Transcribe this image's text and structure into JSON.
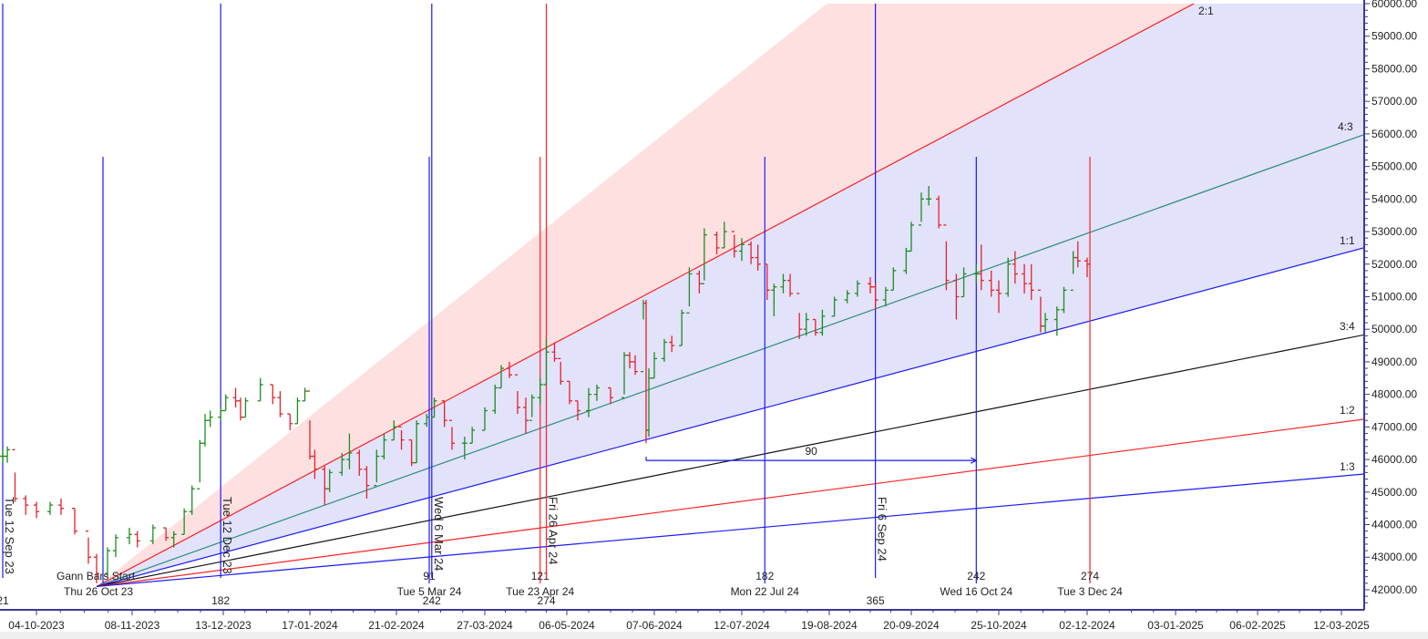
{
  "chart_data": {
    "type": "ohlc-bar",
    "title": "",
    "xlabel": "",
    "ylabel": "",
    "ylim": [
      41500,
      60000
    ],
    "y_ticks": [
      "60000.00",
      "59000.00",
      "58000.00",
      "57000.00",
      "56000.00",
      "55000.00",
      "54000.00",
      "53000.00",
      "52000.00",
      "51000.00",
      "50000.00",
      "49000.00",
      "48000.00",
      "47000.00",
      "46000.00",
      "45000.00",
      "44000.00",
      "43000.00",
      "42000.00"
    ],
    "x_ticks": [
      "04-10-2023",
      "08-11-2023",
      "13-12-2023",
      "17-01-2024",
      "21-02-2024",
      "27-03-2024",
      "06-05-2024",
      "07-06-2024",
      "12-07-2024",
      "19-08-2024",
      "20-09-2024",
      "25-10-2024",
      "02-12-2024",
      "03-01-2025",
      "06-02-2025",
      "12-03-2025"
    ],
    "grid": false,
    "colors": {
      "up": "#1e8c1e",
      "down": "#e8202a",
      "axis": "#3a3a9a",
      "fill_steep": "#ffe0e0",
      "fill_main": "#e2e2fb"
    },
    "bars": [
      [
        "2023-09-12",
        46300,
        45900,
        46100
      ],
      [
        "2023-09-15",
        46400,
        45900,
        46300
      ],
      [
        "2023-09-20",
        45600,
        44700,
        44800
      ],
      [
        "2023-09-27",
        44900,
        44300,
        44600
      ],
      [
        "2023-10-04",
        44700,
        44200,
        44400
      ],
      [
        "2023-10-09",
        44700,
        44300,
        44600
      ],
      [
        "2023-10-13",
        44800,
        44300,
        44500
      ],
      [
        "2023-10-18",
        44500,
        43700,
        43800
      ],
      [
        "2023-10-23",
        43600,
        42800,
        43000
      ],
      [
        "2023-10-26",
        43100,
        42200,
        42500
      ],
      [
        "2023-10-30",
        43300,
        42400,
        43200
      ],
      [
        "2023-11-02",
        43700,
        43000,
        43600
      ],
      [
        "2023-11-07",
        43900,
        43400,
        43700
      ],
      [
        "2023-11-10",
        43800,
        43300,
        43500
      ],
      [
        "2023-11-16",
        44000,
        43400,
        43900
      ],
      [
        "2023-11-21",
        43900,
        43500,
        43600
      ],
      [
        "2023-11-24",
        43800,
        43300,
        43700
      ],
      [
        "2023-11-28",
        44500,
        43700,
        44400
      ],
      [
        "2023-12-01",
        45200,
        44300,
        45100
      ],
      [
        "2023-12-04",
        46600,
        45300,
        46500
      ],
      [
        "2023-12-06",
        47400,
        46400,
        47200
      ],
      [
        "2023-12-08",
        47500,
        47000,
        47300
      ],
      [
        "2023-12-12",
        47600,
        47200,
        47500
      ],
      [
        "2023-12-14",
        48000,
        47500,
        47900
      ],
      [
        "2023-12-18",
        48200,
        47600,
        47800
      ],
      [
        "2023-12-20",
        47900,
        47200,
        47300
      ],
      [
        "2023-12-22",
        47900,
        47300,
        47800
      ],
      [
        "2023-12-28",
        48500,
        47800,
        48300
      ],
      [
        "2024-01-02",
        48300,
        47700,
        47900
      ],
      [
        "2024-01-05",
        48100,
        47300,
        47400
      ],
      [
        "2024-01-09",
        47400,
        46900,
        47100
      ],
      [
        "2024-01-12",
        47900,
        47100,
        47800
      ],
      [
        "2024-01-15",
        48200,
        47800,
        48100
      ],
      [
        "2024-01-17",
        47200,
        46000,
        46100
      ],
      [
        "2024-01-19",
        46300,
        45400,
        45700
      ],
      [
        "2024-01-23",
        45800,
        44600,
        45100
      ],
      [
        "2024-01-25",
        45700,
        45000,
        45600
      ],
      [
        "2024-01-30",
        46200,
        45500,
        46000
      ],
      [
        "2024-02-02",
        46800,
        45700,
        46200
      ],
      [
        "2024-02-06",
        46300,
        45500,
        45700
      ],
      [
        "2024-02-09",
        45800,
        44800,
        45200
      ],
      [
        "2024-02-13",
        46300,
        45300,
        46100
      ],
      [
        "2024-02-16",
        46800,
        46000,
        46600
      ],
      [
        "2024-02-20",
        47200,
        46600,
        47000
      ],
      [
        "2024-02-23",
        46900,
        46300,
        46600
      ],
      [
        "2024-02-27",
        46600,
        45800,
        45900
      ],
      [
        "2024-02-29",
        47200,
        45900,
        47100
      ],
      [
        "2024-03-04",
        47400,
        47000,
        47300
      ],
      [
        "2024-03-07",
        47900,
        47300,
        47800
      ],
      [
        "2024-03-11",
        47800,
        47000,
        47200
      ],
      [
        "2024-03-14",
        47000,
        46300,
        46500
      ],
      [
        "2024-03-19",
        46700,
        46000,
        46500
      ],
      [
        "2024-03-22",
        47000,
        46500,
        46900
      ],
      [
        "2024-03-27",
        47600,
        46900,
        47500
      ],
      [
        "2024-04-01",
        48300,
        47400,
        48200
      ],
      [
        "2024-04-04",
        48900,
        48200,
        48800
      ],
      [
        "2024-04-08",
        49000,
        48500,
        48600
      ],
      [
        "2024-04-12",
        48100,
        47400,
        47600
      ],
      [
        "2024-04-16",
        47900,
        46800,
        47200
      ],
      [
        "2024-04-19",
        48000,
        47300,
        47900
      ],
      [
        "2024-04-23",
        48500,
        47700,
        48300
      ],
      [
        "2024-04-26",
        49700,
        48300,
        49300
      ],
      [
        "2024-04-30",
        49600,
        49000,
        49100
      ],
      [
        "2024-05-03",
        49000,
        48300,
        48400
      ],
      [
        "2024-05-07",
        48400,
        47700,
        47800
      ],
      [
        "2024-05-10",
        47800,
        47200,
        47500
      ],
      [
        "2024-05-14",
        48200,
        47300,
        48000
      ],
      [
        "2024-05-17",
        48300,
        47800,
        48200
      ],
      [
        "2024-05-22",
        48200,
        47700,
        47900
      ],
      [
        "2024-05-27",
        49300,
        48000,
        49200
      ],
      [
        "2024-05-29",
        49300,
        48800,
        49000
      ],
      [
        "2024-05-31",
        49200,
        48600,
        48700
      ],
      [
        "2024-06-03",
        50900,
        50300,
        50800
      ],
      [
        "2024-06-04",
        50900,
        46500,
        46900
      ],
      [
        "2024-06-05",
        48800,
        46700,
        48500
      ],
      [
        "2024-06-07",
        49300,
        48500,
        49100
      ],
      [
        "2024-06-11",
        49700,
        49000,
        49600
      ],
      [
        "2024-06-14",
        49800,
        49300,
        49500
      ],
      [
        "2024-06-18",
        50600,
        49500,
        50500
      ],
      [
        "2024-06-21",
        51900,
        50700,
        51700
      ],
      [
        "2024-06-25",
        51800,
        51100,
        51400
      ],
      [
        "2024-06-27",
        53100,
        51500,
        52900
      ],
      [
        "2024-07-02",
        53000,
        52300,
        52500
      ],
      [
        "2024-07-05",
        53300,
        52500,
        53000
      ],
      [
        "2024-07-09",
        52900,
        52200,
        52400
      ],
      [
        "2024-07-12",
        52800,
        52100,
        52600
      ],
      [
        "2024-07-16",
        52700,
        52000,
        52200
      ],
      [
        "2024-07-19",
        52600,
        51800,
        52000
      ],
      [
        "2024-07-23",
        52000,
        50900,
        51200
      ],
      [
        "2024-07-26",
        51400,
        50400,
        51300
      ],
      [
        "2024-07-30",
        51700,
        51100,
        51500
      ],
      [
        "2024-08-02",
        51700,
        51000,
        51100
      ],
      [
        "2024-08-06",
        50500,
        49700,
        50000
      ],
      [
        "2024-08-09",
        50500,
        49800,
        50300
      ],
      [
        "2024-08-13",
        50300,
        49800,
        49900
      ],
      [
        "2024-08-16",
        50600,
        49800,
        50400
      ],
      [
        "2024-08-21",
        51000,
        50400,
        50900
      ],
      [
        "2024-08-26",
        51200,
        50800,
        51100
      ],
      [
        "2024-08-30",
        51500,
        51000,
        51400
      ],
      [
        "2024-09-04",
        51600,
        51100,
        51300
      ],
      [
        "2024-09-06",
        51400,
        50600,
        50900
      ],
      [
        "2024-09-10",
        51300,
        50700,
        51200
      ],
      [
        "2024-09-13",
        51900,
        51200,
        51800
      ],
      [
        "2024-09-18",
        52500,
        51700,
        52400
      ],
      [
        "2024-09-20",
        53300,
        52400,
        53200
      ],
      [
        "2024-09-24",
        54200,
        53300,
        54000
      ],
      [
        "2024-09-27",
        54400,
        53800,
        54000
      ],
      [
        "2024-10-01",
        54100,
        53100,
        53200
      ],
      [
        "2024-10-04",
        52700,
        51200,
        51500
      ],
      [
        "2024-10-08",
        51700,
        50300,
        51000
      ],
      [
        "2024-10-11",
        51900,
        51000,
        51700
      ],
      [
        "2024-10-16",
        52000,
        51400,
        51700
      ],
      [
        "2024-10-18",
        52600,
        51200,
        51500
      ],
      [
        "2024-10-22",
        51800,
        51000,
        51200
      ],
      [
        "2024-10-25",
        51500,
        50500,
        51100
      ],
      [
        "2024-10-29",
        52200,
        51000,
        52000
      ],
      [
        "2024-11-01",
        52400,
        51400,
        51700
      ],
      [
        "2024-11-05",
        52000,
        51100,
        51400
      ],
      [
        "2024-11-08",
        52000,
        50900,
        51200
      ],
      [
        "2024-11-12",
        51000,
        49900,
        50100
      ],
      [
        "2024-11-14",
        50500,
        49900,
        50300
      ],
      [
        "2024-11-19",
        50700,
        49800,
        50600
      ],
      [
        "2024-11-22",
        51300,
        50500,
        51200
      ],
      [
        "2024-11-26",
        52400,
        51700,
        52200
      ],
      [
        "2024-11-28",
        52700,
        51900,
        52100
      ],
      [
        "2024-12-02",
        52200,
        51600,
        52000
      ]
    ],
    "gann_fan": {
      "origin": {
        "date": "2023-10-26",
        "price": 42100
      },
      "start_label": "Gann Bars Start",
      "start_date_label": "Thu 26 Oct 23",
      "fill_edge": {
        "date": "2024-06-07",
        "price": 55770,
        "color": "#ffd0d0"
      },
      "lines": [
        {
          "label": "2:1",
          "color": "#ff2020",
          "date": "2024-12-02",
          "price": 58260
        },
        {
          "label": "4:3",
          "color": "#2e8b7a",
          "date": "2024-12-02",
          "price": 52945
        },
        {
          "label": "1:1",
          "color": "#1a1aff",
          "date": "2024-12-02",
          "price": 50230
        },
        {
          "label": "3:4",
          "color": "#111111",
          "date": "2024-12-02",
          "price": 48140
        },
        {
          "label": "1:2",
          "color": "#ff2020",
          "date": "2024-12-02",
          "price": 46115
        },
        {
          "label": "1:3",
          "color": "#1a1aff",
          "date": "2024-12-02",
          "price": 44800
        }
      ]
    },
    "bar_count_markers": [
      {
        "date": "2024-03-05",
        "count": "91",
        "date_label": "Tue 5 Mar 24",
        "color": "#1a1aff"
      },
      {
        "date": "2024-04-23",
        "count": "121",
        "date_label": "Tue 23 Apr 24",
        "color": "#ff2020"
      },
      {
        "date": "2024-07-22",
        "count": "182",
        "date_label": "Mon 22 Jul 24",
        "color": "#1a1aff"
      },
      {
        "date": "2024-10-16",
        "count": "242",
        "date_label": "Wed 16 Oct 24",
        "color": "#1a1aff"
      },
      {
        "date": "2024-12-03",
        "count": "274",
        "date_label": "Tue 3 Dec 24",
        "color": "#ff2020"
      }
    ],
    "day_count_markers": [
      {
        "date": "2023-09-12",
        "count": "21",
        "date_label": "Tue 12 Sep 23",
        "color": "#1a1aff"
      },
      {
        "date": "2023-12-12",
        "count": "182",
        "date_label": "Tue 12 Dec 23",
        "color": "#1a1aff"
      },
      {
        "date": "2024-03-06",
        "count": "242",
        "date_label": "Wed 6 Mar 24",
        "color": "#1a1aff"
      },
      {
        "date": "2024-04-26",
        "count": "274",
        "date_label": "Fri 26 Apr 24",
        "color": "#ff2020"
      },
      {
        "date": "2024-09-06",
        "count": "365",
        "date_label": "Fri 6 Sep 24",
        "color": "#1a1aff"
      }
    ],
    "measure_arrow": {
      "from": "2024-06-04",
      "to": "2024-10-16",
      "price": 45970,
      "label": "90",
      "color": "#1a1aff"
    }
  }
}
